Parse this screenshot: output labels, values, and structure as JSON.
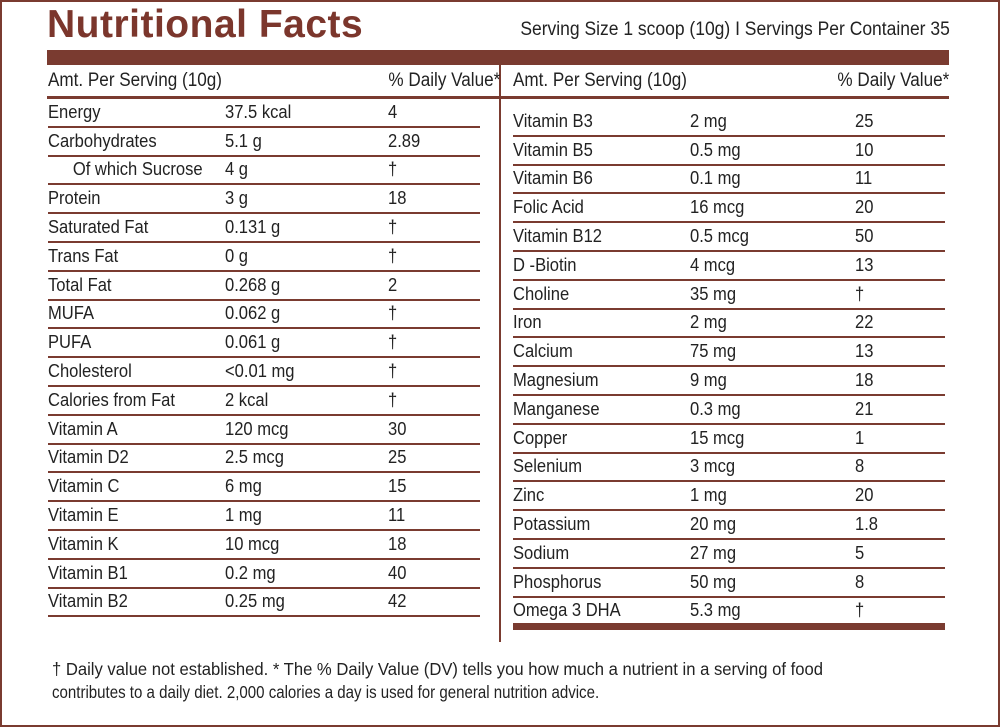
{
  "header": {
    "title": "Nutritional Facts",
    "serving_info": "Serving Size 1 scoop (10g)  I  Servings Per Container 35"
  },
  "colors": {
    "brand": "#7a3b30",
    "text": "#222222",
    "background": "#ffffff"
  },
  "left_table": {
    "header_amount": "Amt. Per Serving (10g)",
    "header_dv": "% Daily Value*",
    "rows": [
      {
        "name": "Energy",
        "amount": "37.5 kcal",
        "dv": "4"
      },
      {
        "name": "Carbohydrates",
        "amount": "5.1 g",
        "dv": "2.89"
      },
      {
        "name": "Of which Sucrose",
        "amount": "4 g",
        "dv": "†",
        "indent": true
      },
      {
        "name": "Protein",
        "amount": "3 g",
        "dv": "18"
      },
      {
        "name": "Saturated Fat",
        "amount": "0.131 g",
        "dv": "†"
      },
      {
        "name": "Trans Fat",
        "amount": "0 g",
        "dv": "†"
      },
      {
        "name": "Total Fat",
        "amount": "0.268 g",
        "dv": "2"
      },
      {
        "name": "MUFA",
        "amount": "0.062 g",
        "dv": "†"
      },
      {
        "name": "PUFA",
        "amount": "0.061 g",
        "dv": "†"
      },
      {
        "name": "Cholesterol",
        "amount": "<0.01 mg",
        "dv": "†"
      },
      {
        "name": "Calories from Fat",
        "amount": "2 kcal",
        "dv": "†"
      },
      {
        "name": "Vitamin A",
        "amount": "120 mcg",
        "dv": "30"
      },
      {
        "name": "Vitamin D2",
        "amount": "2.5 mcg",
        "dv": "25"
      },
      {
        "name": "Vitamin C",
        "amount": "6 mg",
        "dv": "15"
      },
      {
        "name": "Vitamin E",
        "amount": "1 mg",
        "dv": "11"
      },
      {
        "name": "Vitamin K",
        "amount": "10 mcg",
        "dv": "18"
      },
      {
        "name": "Vitamin B1",
        "amount": "0.2 mg",
        "dv": "40"
      },
      {
        "name": "Vitamin B2",
        "amount": "0.25 mg",
        "dv": "42"
      }
    ]
  },
  "right_table": {
    "header_amount": "Amt. Per Serving (10g)",
    "header_dv": "% Daily Value*",
    "rows": [
      {
        "name": "Vitamin B3",
        "amount": "2 mg",
        "dv": "25"
      },
      {
        "name": "Vitamin B5",
        "amount": "0.5 mg",
        "dv": "10"
      },
      {
        "name": "Vitamin B6",
        "amount": "0.1 mg",
        "dv": "11"
      },
      {
        "name": "Folic Acid",
        "amount": "16 mcg",
        "dv": "20"
      },
      {
        "name": "Vitamin B12",
        "amount": "0.5 mcg",
        "dv": "50"
      },
      {
        "name": "D -Biotin",
        "amount": "4 mcg",
        "dv": "13"
      },
      {
        "name": "Choline",
        "amount": "35 mg",
        "dv": "†"
      },
      {
        "name": "Iron",
        "amount": "2 mg",
        "dv": "22"
      },
      {
        "name": "Calcium",
        "amount": "75 mg",
        "dv": "13"
      },
      {
        "name": "Magnesium",
        "amount": "9 mg",
        "dv": "18"
      },
      {
        "name": "Manganese",
        "amount": "0.3 mg",
        "dv": "21"
      },
      {
        "name": "Copper",
        "amount": "15 mcg",
        "dv": "1"
      },
      {
        "name": "Selenium",
        "amount": "3 mcg",
        "dv": "8"
      },
      {
        "name": "Zinc",
        "amount": "1 mg",
        "dv": "20"
      },
      {
        "name": "Potassium",
        "amount": "20 mg",
        "dv": "1.8"
      },
      {
        "name": "Sodium",
        "amount": "27 mg",
        "dv": "5"
      },
      {
        "name": "Phosphorus",
        "amount": "50 mg",
        "dv": "8"
      },
      {
        "name": "Omega 3 DHA",
        "amount": "5.3 mg",
        "dv": "†"
      }
    ]
  },
  "footnote": {
    "line1": "† Daily value not established. * The % Daily Value (DV) tells you how much a nutrient in a serving of food",
    "line2": "contributes to a daily diet. 2,000 calories a day is used for general nutrition advice."
  }
}
